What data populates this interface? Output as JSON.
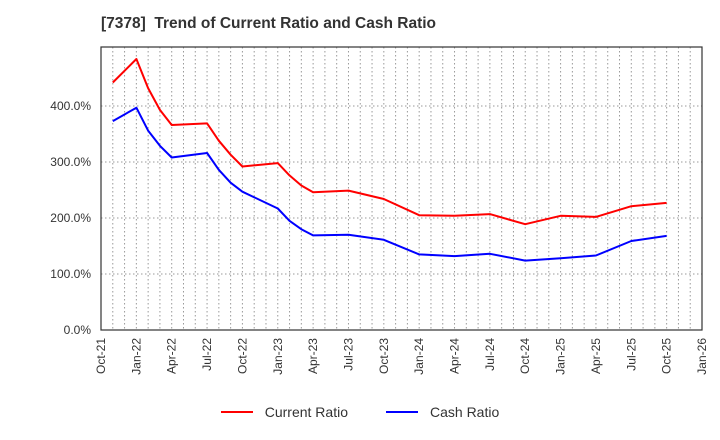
{
  "title": "[7378]  Trend of Current Ratio and Cash Ratio",
  "colors": {
    "current_ratio": "#ff0000",
    "cash_ratio": "#0000ff",
    "grid": "#999999",
    "axis": "#333333",
    "text": "#333333"
  },
  "legend": [
    {
      "label": "Current Ratio",
      "color": "#ff0000"
    },
    {
      "label": "Cash Ratio",
      "color": "#0000ff"
    }
  ],
  "chart_data": {
    "type": "line",
    "title": "[7378]  Trend of Current Ratio and Cash Ratio",
    "xlabel": "",
    "ylabel": "",
    "ylim": [
      0,
      490
    ],
    "yticks": [
      0,
      100,
      200,
      300,
      400
    ],
    "ytick_labels": [
      "0.0%",
      "100.0%",
      "200.0%",
      "300.0%",
      "400.0%"
    ],
    "xtick_labels": [
      "Oct-21",
      "Jan-22",
      "Apr-22",
      "Jul-22",
      "Oct-22",
      "Jan-23",
      "Apr-23",
      "Jul-23",
      "Oct-23",
      "Jan-24",
      "Apr-24",
      "Jul-24",
      "Oct-24",
      "Jan-25",
      "Apr-25",
      "Jul-25",
      "Oct-25",
      "Jan-26"
    ],
    "x_range": [
      "Oct-21",
      "Jan-26"
    ],
    "grid": true,
    "legend_position": "bottom",
    "x": [
      "Nov-21",
      "Jan-22",
      "Feb-22",
      "Mar-22",
      "Apr-22",
      "Jul-22",
      "Aug-22",
      "Sep-22",
      "Oct-22",
      "Jan-23",
      "Feb-23",
      "Mar-23",
      "Apr-23",
      "Jul-23",
      "Oct-23",
      "Jan-24",
      "Apr-24",
      "Jul-24",
      "Oct-24",
      "Jan-25",
      "Apr-25",
      "Jul-25",
      "Oct-25"
    ],
    "x_month_index": [
      1,
      3,
      4,
      5,
      6,
      9,
      10,
      11,
      12,
      15,
      16,
      17,
      18,
      21,
      24,
      27,
      30,
      33,
      36,
      39,
      42,
      45,
      48
    ],
    "series": [
      {
        "name": "Current Ratio",
        "color": "#ff0000",
        "values": [
          442,
          484,
          432,
          393,
          366,
          369,
          338,
          313,
          292,
          298,
          276,
          258,
          246,
          249,
          234,
          205,
          204,
          207,
          189,
          204,
          202,
          221,
          227
        ]
      },
      {
        "name": "Cash Ratio",
        "color": "#0000ff",
        "values": [
          373,
          397,
          356,
          329,
          308,
          316,
          286,
          263,
          247,
          217,
          195,
          180,
          169,
          170,
          161,
          135,
          132,
          136,
          124,
          128,
          133,
          159,
          168
        ]
      }
    ]
  }
}
